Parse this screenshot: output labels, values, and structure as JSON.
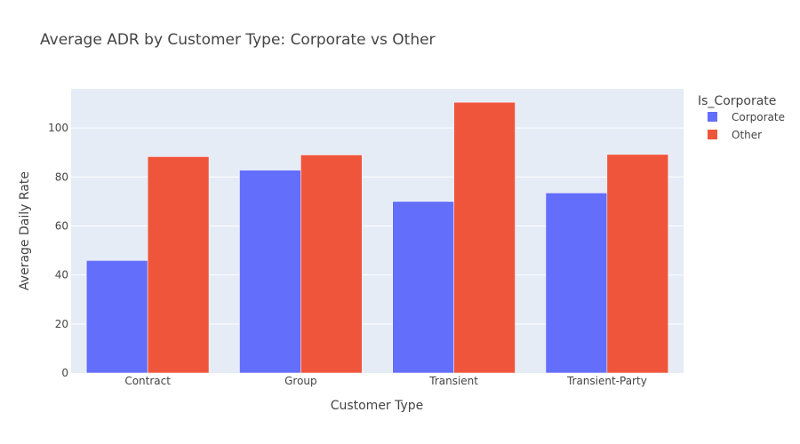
{
  "chart_data": {
    "type": "bar",
    "title": "Average ADR by Customer Type: Corporate vs Other",
    "xlabel": "Customer Type",
    "ylabel": "Average Daily Rate",
    "categories": [
      "Contract",
      "Group",
      "Transient",
      "Transient-Party"
    ],
    "series": [
      {
        "name": "Corporate",
        "color": "#636efa",
        "values": [
          45.9,
          82.8,
          70.0,
          73.5
        ]
      },
      {
        "name": "Other",
        "color": "#ef553b",
        "values": [
          88.3,
          89.0,
          110.5,
          89.2
        ]
      }
    ],
    "ylim": [
      0,
      116
    ],
    "yticks": [
      0,
      20,
      40,
      60,
      80,
      100
    ],
    "grid": true,
    "legend": {
      "title": "Is_Corporate",
      "position": "top-right"
    },
    "plot_background": "#e5ecf6"
  }
}
